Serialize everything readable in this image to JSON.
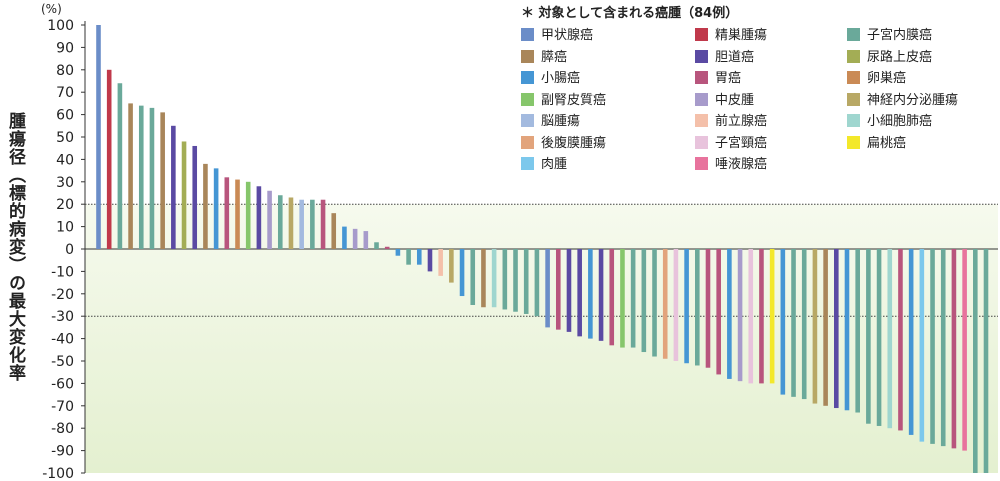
{
  "chart_data": {
    "type": "bar",
    "ylabel": "腫瘍径（標的病変）の最大変化率",
    "yunit": "(%)",
    "ylim": [
      -100,
      100
    ],
    "yticks": [
      100,
      90,
      80,
      70,
      60,
      50,
      40,
      30,
      20,
      10,
      0,
      -10,
      -20,
      -30,
      -40,
      -50,
      -60,
      -70,
      -80,
      -90,
      -100
    ],
    "tick_labels": [
      "100",
      "90",
      "80",
      "70",
      "60",
      "50",
      "40",
      "30",
      "20",
      "10",
      "0",
      "-10",
      "-20",
      "-30",
      "-40",
      "-50",
      "-60",
      "-70",
      "-80",
      "-90",
      "-100"
    ],
    "reference_lines": [
      20,
      -30
    ],
    "legend_title": "＊ 対象として含まれる癌腫（84例）",
    "legend_placement": "top-right",
    "categories": [
      {
        "label": "甲状腺癌",
        "color": "#6b8dc8"
      },
      {
        "label": "精巣腫瘍",
        "color": "#c0394b"
      },
      {
        "label": "子宮内膜癌",
        "color": "#6aa99a"
      },
      {
        "label": "膵癌",
        "color": "#a9865a"
      },
      {
        "label": "胆道癌",
        "color": "#5a4aa3"
      },
      {
        "label": "尿路上皮癌",
        "color": "#a3ad55"
      },
      {
        "label": "小腸癌",
        "color": "#4596d4"
      },
      {
        "label": "胃癌",
        "color": "#b8557d"
      },
      {
        "label": "卵巣癌",
        "color": "#ca8a55"
      },
      {
        "label": "副腎皮質癌",
        "color": "#86c66b"
      },
      {
        "label": "中皮腫",
        "color": "#a79bcb"
      },
      {
        "label": "神経内分泌腫瘍",
        "color": "#b8a865"
      },
      {
        "label": "脳腫瘍",
        "color": "#a3badf"
      },
      {
        "label": "前立腺癌",
        "color": "#f4c0aa"
      },
      {
        "label": "小細胞肺癌",
        "color": "#9fd6cf"
      },
      {
        "label": "後腹膜腫瘍",
        "color": "#e2a47c"
      },
      {
        "label": "子宮頸癌",
        "color": "#e8c3dc"
      },
      {
        "label": "扁桃癌",
        "color": "#f3e82a"
      },
      {
        "label": "肉腫",
        "color": "#7cc8ec"
      },
      {
        "label": "唾液腺癌",
        "color": "#e8739d"
      }
    ],
    "bars": [
      {
        "value": 100,
        "category": 0
      },
      {
        "value": 80,
        "category": 1
      },
      {
        "value": 74,
        "category": 2
      },
      {
        "value": 65,
        "category": 3
      },
      {
        "value": 64,
        "category": 2
      },
      {
        "value": 63,
        "category": 2
      },
      {
        "value": 61,
        "category": 3
      },
      {
        "value": 55,
        "category": 4
      },
      {
        "value": 48,
        "category": 5
      },
      {
        "value": 46,
        "category": 4
      },
      {
        "value": 38,
        "category": 3
      },
      {
        "value": 36,
        "category": 6
      },
      {
        "value": 32,
        "category": 7
      },
      {
        "value": 31,
        "category": 8
      },
      {
        "value": 30,
        "category": 9
      },
      {
        "value": 28,
        "category": 4
      },
      {
        "value": 26,
        "category": 10
      },
      {
        "value": 24,
        "category": 2
      },
      {
        "value": 23,
        "category": 11
      },
      {
        "value": 22,
        "category": 12
      },
      {
        "value": 22,
        "category": 2
      },
      {
        "value": 22,
        "category": 7
      },
      {
        "value": 16,
        "category": 3
      },
      {
        "value": 10,
        "category": 6
      },
      {
        "value": 9,
        "category": 10
      },
      {
        "value": 8,
        "category": 10
      },
      {
        "value": 3,
        "category": 2
      },
      {
        "value": 1,
        "category": 7
      },
      {
        "value": -3,
        "category": 6
      },
      {
        "value": -7,
        "category": 2
      },
      {
        "value": -7,
        "category": 6
      },
      {
        "value": -10,
        "category": 4
      },
      {
        "value": -12,
        "category": 13
      },
      {
        "value": -15,
        "category": 11
      },
      {
        "value": -21,
        "category": 6
      },
      {
        "value": -25,
        "category": 2
      },
      {
        "value": -26,
        "category": 3
      },
      {
        "value": -26,
        "category": 14
      },
      {
        "value": -27,
        "category": 2
      },
      {
        "value": -28,
        "category": 2
      },
      {
        "value": -29,
        "category": 2
      },
      {
        "value": -30,
        "category": 2
      },
      {
        "value": -35,
        "category": 0
      },
      {
        "value": -36,
        "category": 7
      },
      {
        "value": -37,
        "category": 4
      },
      {
        "value": -39,
        "category": 4
      },
      {
        "value": -40,
        "category": 6
      },
      {
        "value": -41,
        "category": 4
      },
      {
        "value": -43,
        "category": 7
      },
      {
        "value": -44,
        "category": 9
      },
      {
        "value": -44,
        "category": 2
      },
      {
        "value": -46,
        "category": 2
      },
      {
        "value": -48,
        "category": 2
      },
      {
        "value": -49,
        "category": 15
      },
      {
        "value": -50,
        "category": 16
      },
      {
        "value": -51,
        "category": 6
      },
      {
        "value": -52,
        "category": 2
      },
      {
        "value": -53,
        "category": 7
      },
      {
        "value": -56,
        "category": 7
      },
      {
        "value": -58,
        "category": 6
      },
      {
        "value": -59,
        "category": 10
      },
      {
        "value": -60,
        "category": 16
      },
      {
        "value": -60,
        "category": 7
      },
      {
        "value": -60,
        "category": 17
      },
      {
        "value": -65,
        "category": 6
      },
      {
        "value": -66,
        "category": 2
      },
      {
        "value": -67,
        "category": 2
      },
      {
        "value": -69,
        "category": 11
      },
      {
        "value": -70,
        "category": 3
      },
      {
        "value": -71,
        "category": 4
      },
      {
        "value": -72,
        "category": 6
      },
      {
        "value": -73,
        "category": 2
      },
      {
        "value": -78,
        "category": 2
      },
      {
        "value": -79,
        "category": 2
      },
      {
        "value": -80,
        "category": 14
      },
      {
        "value": -81,
        "category": 7
      },
      {
        "value": -83,
        "category": 6
      },
      {
        "value": -86,
        "category": 18
      },
      {
        "value": -87,
        "category": 2
      },
      {
        "value": -88,
        "category": 2
      },
      {
        "value": -89,
        "category": 7
      },
      {
        "value": -90,
        "category": 19
      },
      {
        "value": -100,
        "category": 2
      },
      {
        "value": -100,
        "category": 2
      }
    ]
  }
}
